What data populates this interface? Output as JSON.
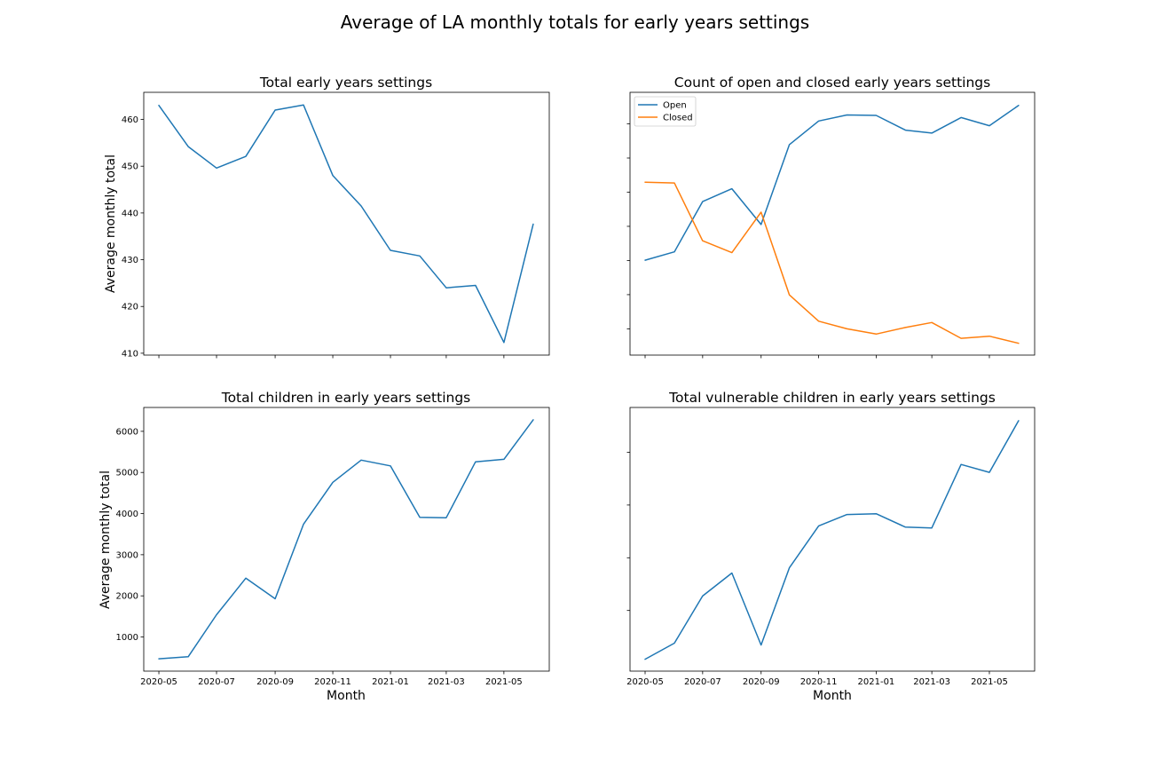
{
  "figure": {
    "suptitle": "Average of LA monthly totals for early years settings"
  },
  "colors": {
    "series_blue": "#1f77b4",
    "series_orange": "#ff7f0e",
    "axes": "#000000"
  },
  "chart_data": [
    {
      "type": "line",
      "title": "Total early years settings",
      "xlabel": "",
      "ylabel": "Average monthly total",
      "x": [
        "2020-05",
        "2020-06",
        "2020-07",
        "2020-08",
        "2020-09",
        "2020-10",
        "2020-11",
        "2020-12",
        "2021-01",
        "2021-02",
        "2021-03",
        "2021-04",
        "2021-05",
        "2021-06"
      ],
      "xlim": [
        "2020-04-15",
        "2021-06-18"
      ],
      "ylim": [
        409.6,
        465.8
      ],
      "xticks": [
        "2020-05",
        "2020-07",
        "2020-09",
        "2020-11",
        "2021-01",
        "2021-03",
        "2021-05"
      ],
      "show_xtick_labels": false,
      "yticks": [
        410,
        420,
        430,
        440,
        450,
        460
      ],
      "show_ytick_labels": true,
      "legend": null,
      "series": [
        {
          "values": [
            463.0,
            454.2,
            449.6,
            452.1,
            462.0,
            463.1,
            448.0,
            441.5,
            432.0,
            430.8,
            424.0,
            424.5,
            412.3,
            437.6
          ],
          "color": "#1f77b4"
        }
      ]
    },
    {
      "type": "line",
      "title": "Count of open and closed early years settings",
      "xlabel": "",
      "ylabel": "",
      "x": [
        "2020-05",
        "2020-06",
        "2020-07",
        "2020-08",
        "2020-09",
        "2020-10",
        "2020-11",
        "2020-12",
        "2021-01",
        "2021-02",
        "2021-03",
        "2021-04",
        "2021-05",
        "2021-06"
      ],
      "xlim": [
        "2020-04-15",
        "2021-06-18"
      ],
      "ylim": [
        0,
        100
      ],
      "xticks": [
        "2020-05",
        "2020-07",
        "2020-09",
        "2020-11",
        "2021-01",
        "2021-03",
        "2021-05"
      ],
      "show_xtick_labels": false,
      "yticks": [
        10,
        23,
        36,
        49,
        62,
        75,
        88
      ],
      "show_ytick_labels": false,
      "legend": "upper-left",
      "series": [
        {
          "name": "Open",
          "values": [
            36.1,
            39.3,
            58.4,
            63.3,
            49.7,
            80.1,
            89.1,
            91.4,
            91.2,
            85.6,
            84.5,
            90.4,
            87.3,
            95.0
          ],
          "color": "#1f77b4"
        },
        {
          "name": "Closed",
          "values": [
            65.8,
            65.5,
            43.5,
            39.0,
            54.4,
            22.9,
            12.9,
            10.0,
            8.0,
            10.5,
            12.4,
            6.4,
            7.2,
            4.5
          ],
          "color": "#ff7f0e"
        }
      ]
    },
    {
      "type": "line",
      "title": "Total children in early years settings",
      "xlabel": "Month",
      "ylabel": "Average monthly total",
      "x": [
        "2020-05",
        "2020-06",
        "2020-07",
        "2020-08",
        "2020-09",
        "2020-10",
        "2020-11",
        "2020-12",
        "2021-01",
        "2021-02",
        "2021-03",
        "2021-04",
        "2021-05",
        "2021-06"
      ],
      "xlim": [
        "2020-04-15",
        "2021-06-18"
      ],
      "ylim": [
        170,
        6580
      ],
      "xticks": [
        "2020-05",
        "2020-07",
        "2020-09",
        "2020-11",
        "2021-01",
        "2021-03",
        "2021-05"
      ],
      "show_xtick_labels": true,
      "yticks": [
        1000,
        2000,
        3000,
        4000,
        5000,
        6000
      ],
      "show_ytick_labels": true,
      "legend": null,
      "series": [
        {
          "values": [
            470,
            520,
            1540,
            2430,
            1930,
            3740,
            4760,
            5300,
            5160,
            3910,
            3900,
            5260,
            5320,
            6280
          ],
          "color": "#1f77b4"
        }
      ]
    },
    {
      "type": "line",
      "title": "Total vulnerable children in early years settings",
      "xlabel": "Month",
      "ylabel": "",
      "x": [
        "2020-05",
        "2020-06",
        "2020-07",
        "2020-08",
        "2020-09",
        "2020-10",
        "2020-11",
        "2020-12",
        "2021-01",
        "2021-02",
        "2021-03",
        "2021-04",
        "2021-05",
        "2021-06"
      ],
      "xlim": [
        "2020-04-15",
        "2021-06-18"
      ],
      "ylim": [
        0,
        100
      ],
      "xticks": [
        "2020-05",
        "2020-07",
        "2020-09",
        "2020-11",
        "2021-01",
        "2021-03",
        "2021-05"
      ],
      "show_xtick_labels": true,
      "yticks": [
        23,
        43,
        63,
        83
      ],
      "show_ytick_labels": false,
      "legend": null,
      "series": [
        {
          "values": [
            4.5,
            10.6,
            28.5,
            37.2,
            9.9,
            39.2,
            55.1,
            59.4,
            59.7,
            54.6,
            54.3,
            78.4,
            75.4,
            95.0
          ],
          "color": "#1f77b4"
        }
      ]
    }
  ]
}
